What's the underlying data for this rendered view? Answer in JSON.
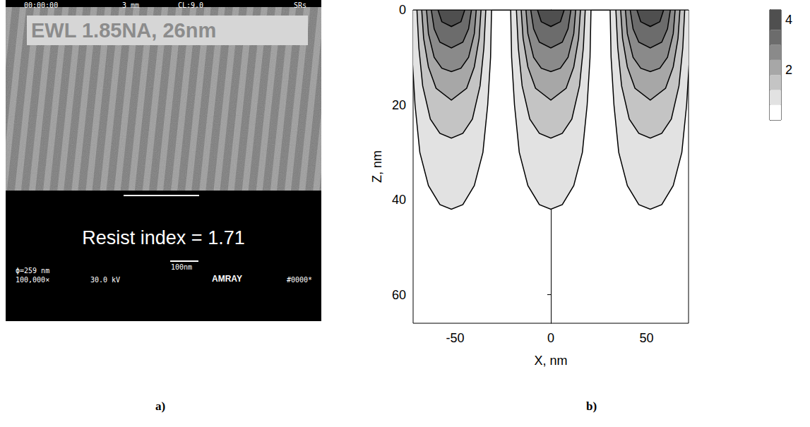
{
  "panel_labels": [
    "a)",
    "b)"
  ],
  "sem_image": {
    "header": [
      "00:00:00",
      "3 mm",
      "CL:9.0",
      "SRs"
    ],
    "caption": "EWL 1.85NA, 26nm",
    "annotation": "Resist index = 1.71",
    "footer": {
      "line1": "ϕ=259 nm",
      "magnification": "100,000×",
      "voltage": "30.0 kV",
      "scale_bar": "100nm",
      "brand": "AMRAY",
      "code": "#0000*"
    }
  },
  "chart_data": {
    "type": "contour",
    "x_label": "X, nm",
    "y_label": "Z, nm",
    "xlim": [
      -72,
      72
    ],
    "xticks": [
      -50,
      0,
      50
    ],
    "ylim": [
      0,
      66
    ],
    "yticks": [
      0,
      20,
      40,
      60
    ],
    "grid": false,
    "centers": [
      -52,
      0,
      52
    ],
    "contours": [
      {
        "level": 0.6,
        "profile": [
          [
            21,
            0
          ],
          [
            20.5,
            10
          ],
          [
            19,
            20
          ],
          [
            16.5,
            30
          ],
          [
            12,
            37
          ],
          [
            6,
            41
          ],
          [
            0,
            42
          ]
        ]
      },
      {
        "level": 1.2,
        "profile": [
          [
            18,
            0
          ],
          [
            17,
            8
          ],
          [
            15,
            16
          ],
          [
            11,
            23
          ],
          [
            6,
            26
          ],
          [
            0,
            27
          ]
        ]
      },
      {
        "level": 1.8,
        "profile": [
          [
            15.5,
            0
          ],
          [
            14.5,
            6
          ],
          [
            12,
            12
          ],
          [
            8,
            16.5
          ],
          [
            0,
            19
          ]
        ]
      },
      {
        "level": 2.4,
        "profile": [
          [
            13,
            0
          ],
          [
            12,
            5
          ],
          [
            9,
            10
          ],
          [
            5,
            12.3
          ],
          [
            0,
            13
          ]
        ]
      },
      {
        "level": 3.0,
        "profile": [
          [
            10.5,
            0
          ],
          [
            9,
            4
          ],
          [
            6,
            6.8
          ],
          [
            0,
            8
          ]
        ]
      },
      {
        "level": 3.6,
        "profile": [
          [
            7,
            0
          ],
          [
            5,
            2.5
          ],
          [
            0,
            3.5
          ]
        ]
      }
    ],
    "colorbar": {
      "range": [
        0,
        4.4
      ],
      "ticks": [
        2,
        4
      ]
    }
  }
}
